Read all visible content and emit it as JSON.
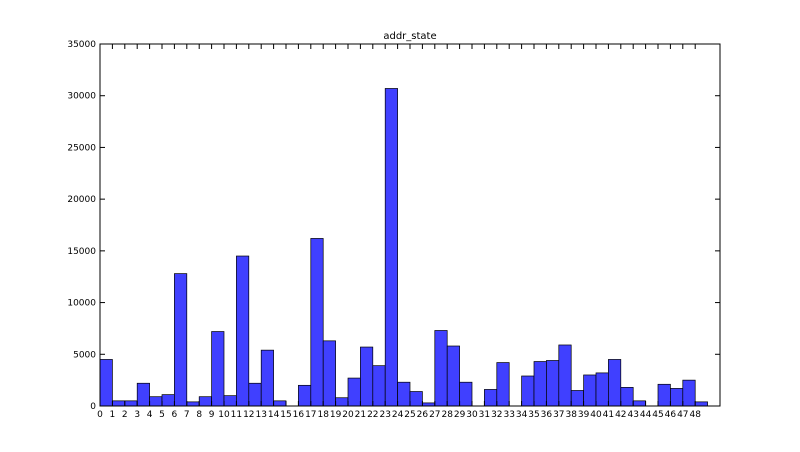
{
  "chart_data": {
    "type": "histogram",
    "title": "addr_state",
    "bins": [
      0,
      1,
      2,
      3,
      4,
      5,
      6,
      7,
      8,
      9,
      10,
      11,
      12,
      13,
      14,
      15,
      16,
      17,
      18,
      19,
      20,
      21,
      22,
      23,
      24,
      25,
      26,
      27,
      28,
      29,
      30,
      31,
      32,
      33,
      34,
      35,
      36,
      37,
      38,
      39,
      40,
      41,
      42,
      43,
      44,
      45,
      46,
      47,
      48,
      49
    ],
    "values": [
      4500,
      500,
      500,
      2200,
      900,
      1100,
      12800,
      400,
      900,
      7200,
      1000,
      14500,
      2200,
      5400,
      500,
      0,
      2000,
      16200,
      6300,
      800,
      2700,
      5700,
      3900,
      30700,
      2300,
      1400,
      300,
      7300,
      5800,
      2300,
      0,
      1600,
      4200,
      0,
      2900,
      4300,
      4400,
      5900,
      1500,
      3000,
      3200,
      4500,
      1800,
      500,
      0,
      2100,
      1700,
      2500,
      400
    ],
    "color": "#4040ff",
    "xlim": [
      0,
      50
    ],
    "xticks": [
      0,
      1,
      2,
      3,
      4,
      5,
      6,
      7,
      8,
      9,
      10,
      11,
      12,
      13,
      14,
      15,
      16,
      17,
      18,
      19,
      20,
      21,
      22,
      23,
      24,
      25,
      26,
      27,
      28,
      29,
      30,
      31,
      32,
      33,
      34,
      35,
      36,
      37,
      38,
      39,
      40,
      41,
      42,
      43,
      44,
      45,
      46,
      47,
      48
    ],
    "ylim": [
      0,
      35000
    ],
    "yticks": [
      0,
      5000,
      10000,
      15000,
      20000,
      25000,
      30000,
      35000
    ]
  }
}
